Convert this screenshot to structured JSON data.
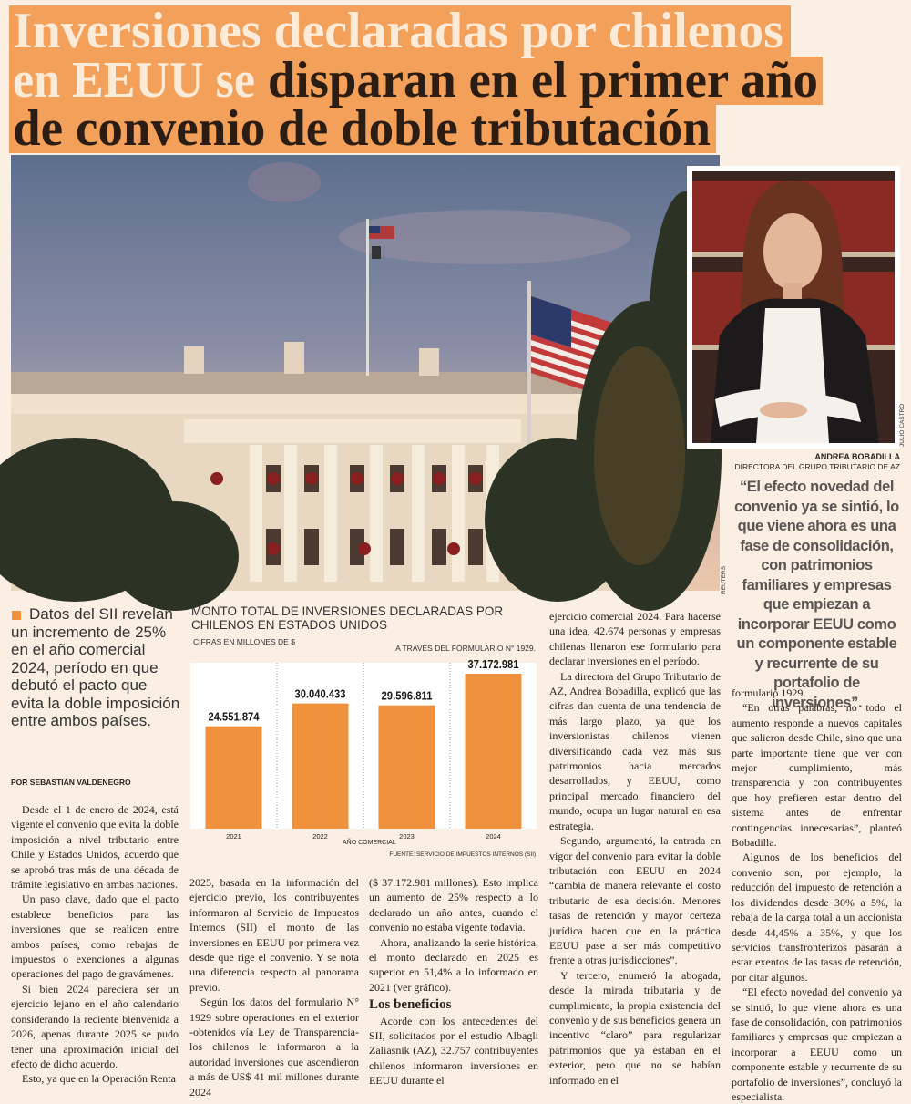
{
  "headline": {
    "light": [
      "Inversiones declaradas por chilenos",
      "en EEUU se"
    ],
    "dark": [
      "disparan en el primer año",
      "de convenio de doble tributación"
    ]
  },
  "photo_credit": "REUTERS",
  "portrait": {
    "name": "ANDREA BOBADILLA",
    "role": "DIRECTORA DEL GRUPO TRIBUTARIO DE AZ",
    "credit": "JULIO CASTRO"
  },
  "quote": "“El efecto novedad del convenio ya se sintió, lo que viene ahora es una fase de consolidación, con patrimonios familiares y empresas que empiezan a incorporar EEUU como un componente estable y recurrente de su portafolio de inversiones”.",
  "lead": "Datos del SII revelan un incremento de 25% en el año comercial 2024, período en que debutó el pacto que evita la doble imposición entre ambos países.",
  "byline": "POR SEBASTIÁN VALDENEGRO",
  "chart_data": {
    "type": "bar",
    "title": "MONTO TOTAL DE INVERSIONES DECLARADAS POR CHILENOS EN ESTADOS UNIDOS",
    "subtitle": "CIFRAS EN MILLONES DE $",
    "note": "A TRAVÉS DEL FORMULARIO N° 1929.",
    "x_label": "AÑO COMERCIAL",
    "source": "FUENTE: SERVICIO DE IMPUESTOS INTERNOS (SII).",
    "categories": [
      "2021",
      "2022",
      "2023",
      "2024"
    ],
    "values": [
      24551874,
      30040433,
      29596811,
      37172981
    ],
    "value_labels": [
      "24.551.874",
      "30.040.433",
      "29.596.811",
      "37.172.981"
    ],
    "color": "#f0913e"
  },
  "body": {
    "columns": [
      [
        "Desde el 1 de enero de 2024, está vigente el convenio que evita la doble imposición a nivel tributario entre Chile y Estados Unidos, acuerdo que se aprobó tras más de una década de trámite legislativo en ambas naciones.",
        "Un paso clave, dado que el pacto establece beneficios para las inversiones que se realicen entre ambos países, como rebajas de impuestos o exenciones a algunas operaciones del pago de gravámenes.",
        "Si bien 2024 pareciera ser un ejercicio lejano en el año calendario considerando la reciente bienvenida a 2026, apenas durante 2025 se pudo tener una aproximación inicial del efecto de dicho acuerdo.",
        "Esto, ya que en la Operación Renta"
      ],
      [
        "2025, basada en la información del ejercicio previo, los contribuyentes informaron al Servicio de Impuestos Internos (SII) el monto de las inversiones en EEUU por primera vez desde que rige el convenio. Y se nota una diferencia respecto al panorama previo.",
        "Según los datos del formulario N° 1929 sobre operaciones en el exterior -obtenidos vía Ley de Transparencia- los chilenos le informaron a la autoridad inversiones que ascendieron a más de US$ 41 mil millones durante 2024"
      ],
      [
        "($ 37.172.981 millones). Esto implica un aumento de 25% respecto a lo declarado un año antes, cuando el convenio no estaba vigente todavía.",
        "Ahora, analizando la serie histórica, el monto declarado en 2025 es superior en 51,4% a lo informado en 2021 (ver gráfico).",
        {
          "subhead": "Los beneficios"
        },
        "Acorde con los antecedentes del SII, solicitados por el estudio Albagli Zaliasnik (AZ), 32.757 contribuyentes chilenos informaron inversiones en EEUU durante el"
      ],
      [
        "ejercicio comercial 2024. Para hacerse una idea, 42.674 personas y empresas chilenas llenaron ese formulario para declarar inversiones en el período.",
        "La directora del Grupo Tributario de AZ, Andrea Bobadilla, explicó que las cifras dan cuenta de una tendencia de más largo plazo, ya que los inversionistas chilenos vienen diversificando cada vez más sus patrimonios hacia mercados desarrollados, y EEUU, como principal mercado financiero del mundo, ocupa un lugar natural en esa estrategia.",
        "Segundo, argumentó, la entrada en vigor del convenio para evitar la doble tributación con EEUU en 2024 “cambia de manera relevante el costo tributario de esa decisión. Menores tasas de retención y mayor certeza jurídica hacen que en la práctica EEUU pase a ser más competitivo frente a otras jurisdicciones”.",
        "Y tercero, enumeró la abogada, desde la mirada tributaria y de cumplimiento, la propia existencia del convenio y de sus beneficios genera un incentivo “claro” para regularizar patrimonios que ya estaban en el exterior, pero que no se habían informado en el"
      ],
      [
        "formulario 1929.",
        "“En otras palabras, no todo el aumento responde a nuevos capitales que salieron desde Chile, sino que una parte importante tiene que ver con mejor cumplimiento, más transparencia y con contribuyentes que hoy prefieren estar dentro del sistema antes de enfrentar contingencias innecesarias”, planteó Bobadilla.",
        "Algunos de los beneficios del convenio son, por ejemplo, la reducción del impuesto de retención a los dividendos desde 30% a 5%, la rebaja de la carga total a un accionista desde 44,45% a 35%, y que los servicios transfronterizos pasarán a estar exentos de las tasas de retención, por citar algunos.",
        "“El efecto novedad del convenio ya se sintió, lo que viene ahora es una fase de consolidación, con patrimonios familiares y empresas que empiezan a incorporar a EEUU como un componente estable y recurrente de su portafolio de inversiones”, concluyó la especialista."
      ]
    ]
  }
}
